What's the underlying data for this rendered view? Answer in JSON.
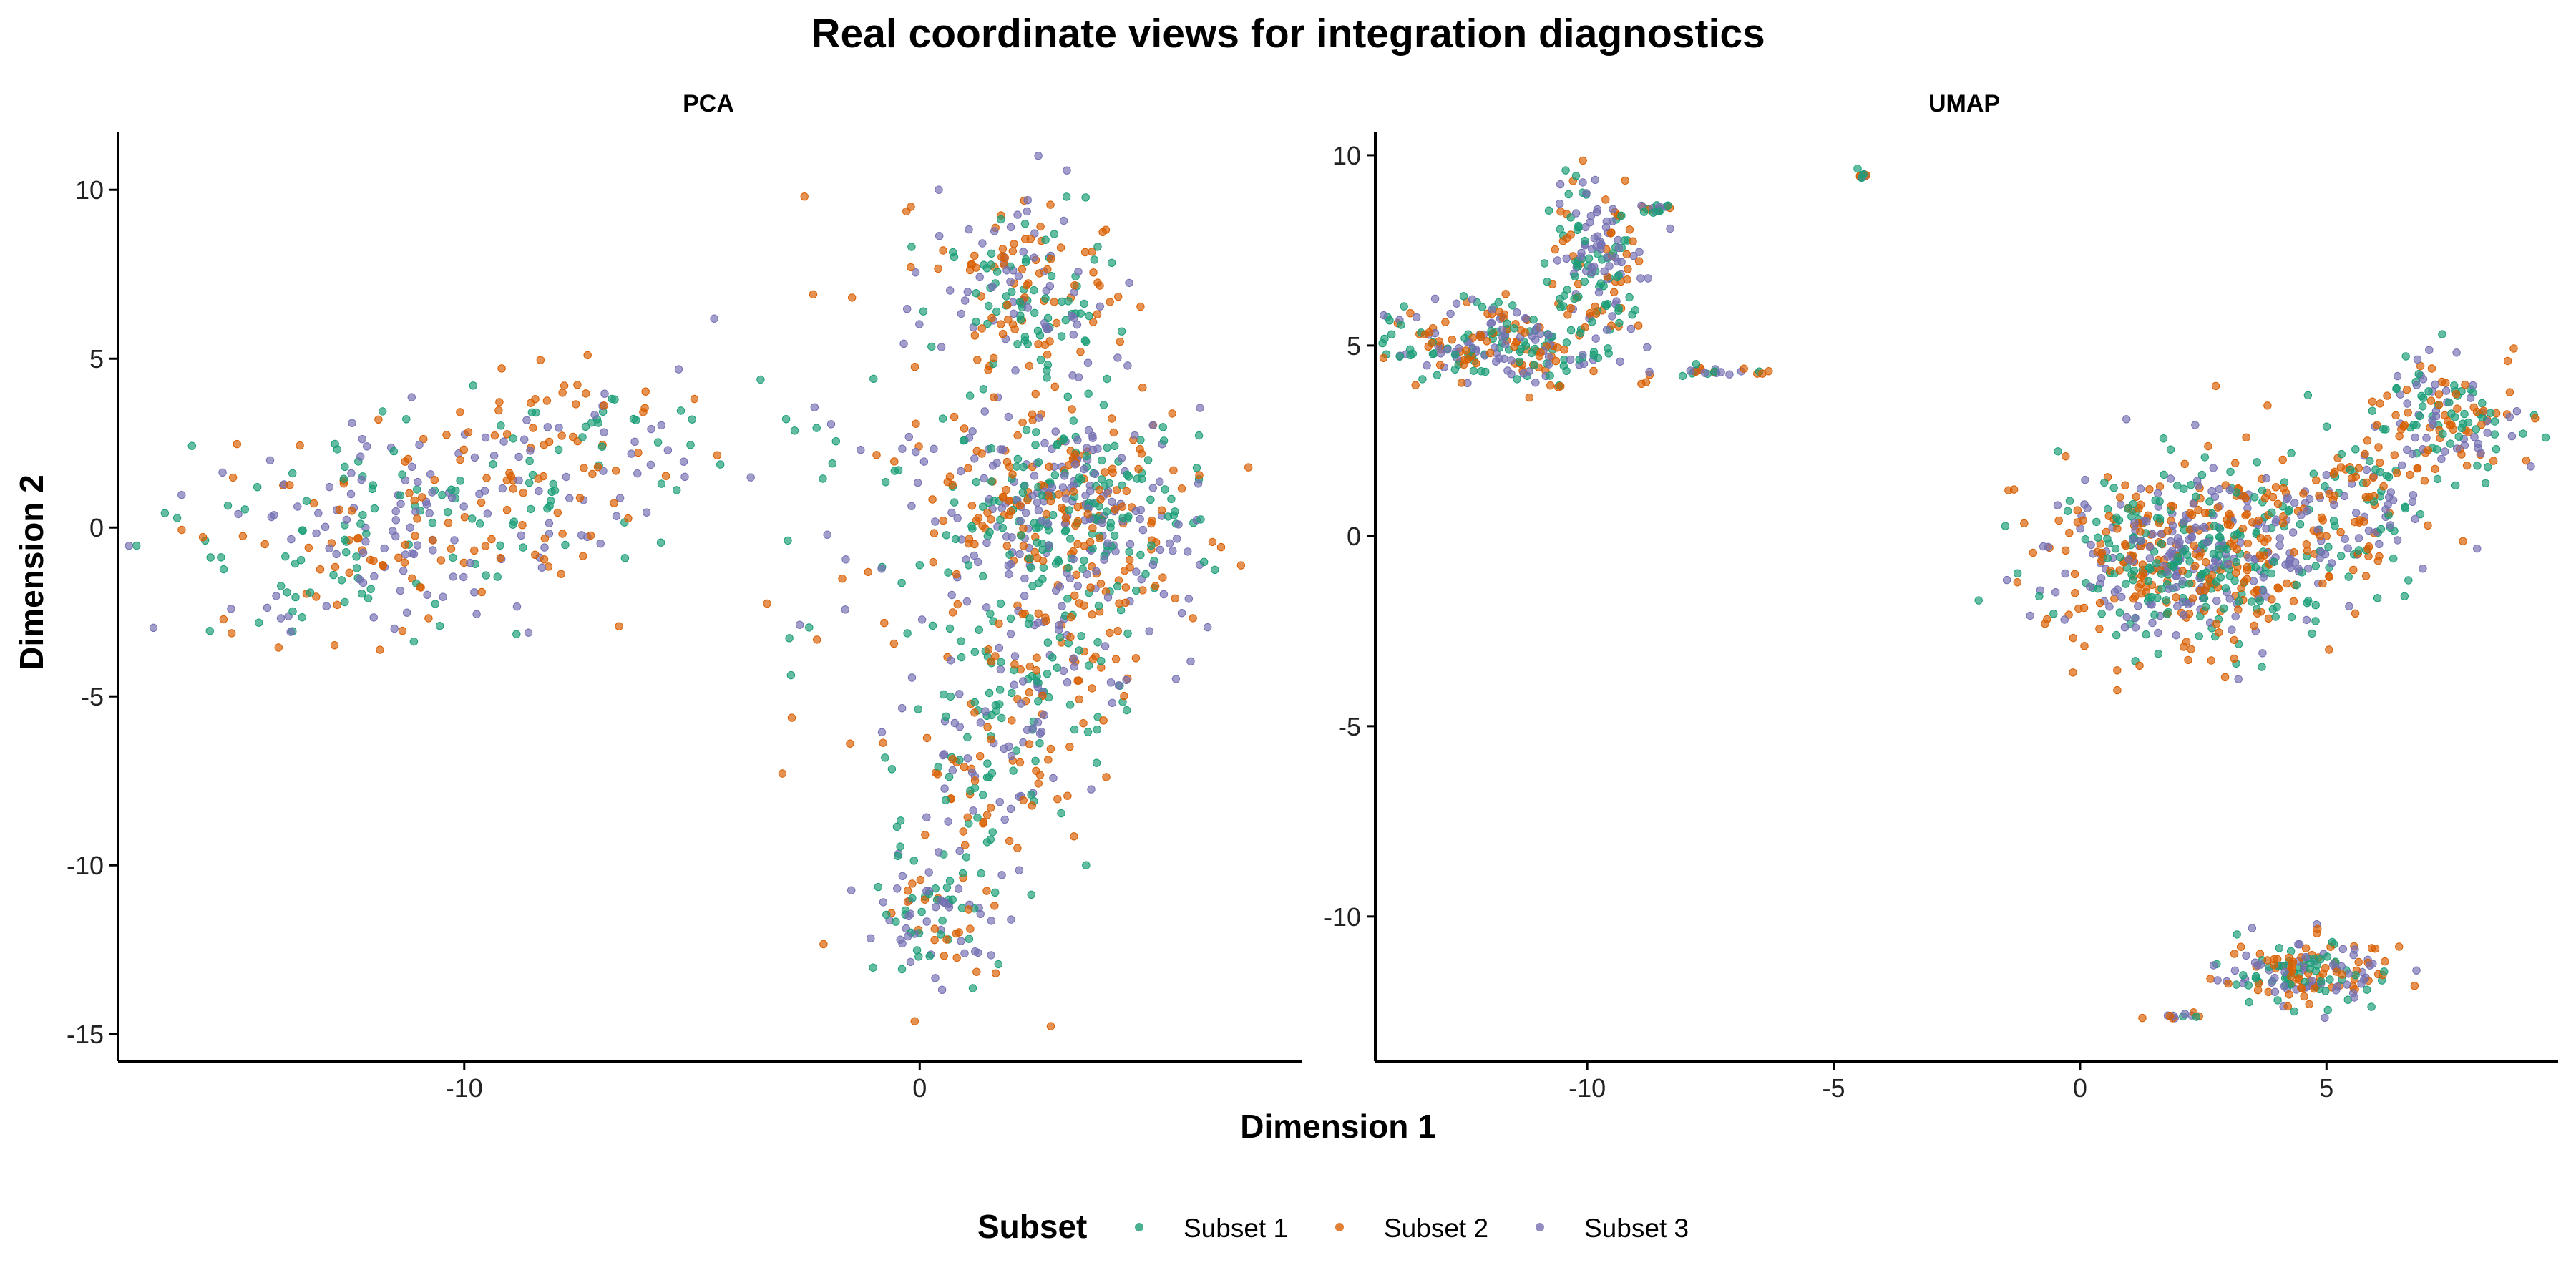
{
  "colors": {
    "Subset 1": "#1b9e77",
    "Subset 2": "#d95f02",
    "Subset 3": "#7570b3"
  },
  "chart_data": {
    "type": "scatter",
    "title": "Real coordinate views for integration diagnostics",
    "xlabel": "Dimension 1",
    "ylabel": "Dimension 2",
    "legend": {
      "title": "Subset",
      "placement": "bottom",
      "entries": [
        "Subset 1",
        "Subset 2",
        "Subset 3"
      ]
    },
    "grid": false,
    "facets": [
      {
        "name": "PCA",
        "xlim": [
          -17.6,
          8.4
        ],
        "ylim": [
          -15.8,
          11.7
        ],
        "xticks": [
          -10,
          0
        ],
        "yticks": [
          10,
          5,
          0,
          -5,
          -10,
          -15
        ],
        "clusters": [
          {
            "cx": -11.5,
            "cy": 0.0,
            "sx": 2.4,
            "sy": 1.7,
            "n": 300,
            "rot": 0.22
          },
          {
            "cx": -7.5,
            "cy": 2.4,
            "sx": 1.6,
            "sy": 1.3,
            "n": 90,
            "rot": 0.1
          },
          {
            "cx": 3.2,
            "cy": 0.9,
            "sx": 1.3,
            "sy": 1.5,
            "n": 420,
            "rot": 0.5
          },
          {
            "cx": 2.5,
            "cy": -5.0,
            "sx": 1.1,
            "sy": 3.4,
            "n": 340,
            "rot": -0.32
          },
          {
            "cx": 2.3,
            "cy": 7.1,
            "sx": 1.1,
            "sy": 1.3,
            "n": 200,
            "rot": 0.1
          },
          {
            "cx": 0.6,
            "cy": -11.5,
            "sx": 0.9,
            "sy": 1.1,
            "n": 90,
            "rot": 0.0
          },
          {
            "cx": -1.2,
            "cy": 0.5,
            "sx": 1.6,
            "sy": 3.6,
            "n": 65,
            "rot": 0.0
          }
        ]
      },
      {
        "name": "UMAP",
        "xlim": [
          -14.3,
          9.7
        ],
        "ylim": [
          -13.8,
          10.6
        ],
        "xticks": [
          -10,
          -5,
          0,
          5
        ],
        "yticks": [
          10,
          5,
          0,
          -5,
          -10
        ],
        "clusters": [
          {
            "cx": 2.3,
            "cy": -0.6,
            "sx": 1.5,
            "sy": 1.2,
            "n": 620,
            "rot": 0.0
          },
          {
            "cx": 5.6,
            "cy": 1.0,
            "sx": 1.0,
            "sy": 0.9,
            "n": 160,
            "rot": 0.4
          },
          {
            "cx": 7.6,
            "cy": 3.1,
            "sx": 0.7,
            "sy": 0.8,
            "n": 140,
            "rot": 0.5
          },
          {
            "cx": 4.6,
            "cy": -11.5,
            "sx": 0.8,
            "sy": 0.45,
            "n": 180,
            "rot": 0.0
          },
          {
            "cx": -11.8,
            "cy": 5.0,
            "sx": 1.2,
            "sy": 0.55,
            "n": 230,
            "rot": -0.15
          },
          {
            "cx": -9.8,
            "cy": 7.2,
            "sx": 0.5,
            "sy": 1.1,
            "n": 170,
            "rot": 0.0
          },
          {
            "cx": -7.5,
            "cy": 4.3,
            "sx": 0.7,
            "sy": 0.08,
            "n": 25,
            "rot": 0.0
          },
          {
            "cx": -8.6,
            "cy": 8.6,
            "sx": 0.15,
            "sy": 0.06,
            "n": 18,
            "rot": 0.0
          },
          {
            "cx": -4.4,
            "cy": 9.5,
            "sx": 0.07,
            "sy": 0.07,
            "n": 10,
            "rot": 0.0
          },
          {
            "cx": 2.2,
            "cy": -12.6,
            "sx": 0.4,
            "sy": 0.05,
            "n": 12,
            "rot": 0.0
          }
        ]
      }
    ]
  }
}
